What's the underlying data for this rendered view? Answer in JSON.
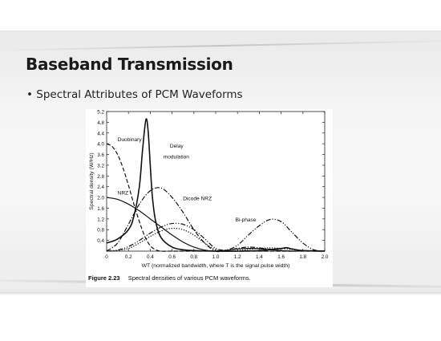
{
  "slide": {
    "title": "Baseband Transmission",
    "bullet": "• Spectral Attributes of PCM Waveforms"
  },
  "figure": {
    "number": "Figure 2.23",
    "caption": "Spectral densities of various PCM waveforms."
  },
  "chart_data": {
    "type": "line",
    "xlabel": "WT (normalized bandwidth, where T is the signal pulse width)",
    "ylabel": "Spectral density (W/Hz)",
    "xlim": [
      0,
      2.0
    ],
    "ylim": [
      0,
      5.2
    ],
    "xticks": [
      "0",
      "0.2",
      "0.4",
      "0.6",
      "0.8",
      "1.0",
      "1.2",
      "1.4",
      "1.6",
      "1.8",
      "2.0"
    ],
    "yticks": [
      "0.4",
      "0.8",
      "1.2",
      "1.6",
      "2.0",
      "2.4",
      "2.8",
      "3.2",
      "3.6",
      "4.0",
      "4.4",
      "4.8",
      "5.2"
    ],
    "grid": false,
    "series": [
      {
        "name": "Duobinary",
        "dash": "dashed",
        "x": [
          0,
          0.05,
          0.1,
          0.15,
          0.2,
          0.25,
          0.3,
          0.35,
          0.4,
          0.45,
          0.5,
          0.6,
          0.8,
          1.0,
          1.2,
          1.4,
          1.6,
          1.8,
          2.0
        ],
        "y": [
          4.0,
          3.9,
          3.6,
          3.1,
          2.45,
          1.75,
          1.1,
          0.55,
          0.2,
          0.05,
          0.0,
          0.0,
          0.0,
          0.0,
          0.0,
          0.0,
          0.0,
          0.0,
          0.0
        ]
      },
      {
        "name": "Delay modulation",
        "dash": "solid",
        "x": [
          0,
          0.1,
          0.2,
          0.25,
          0.3,
          0.33,
          0.36,
          0.38,
          0.4,
          0.42,
          0.45,
          0.5,
          0.6,
          0.7,
          0.8,
          1.0,
          1.2,
          1.4,
          1.6,
          1.65,
          1.7,
          1.8,
          2.0
        ],
        "y": [
          0.3,
          0.45,
          0.8,
          1.3,
          2.4,
          3.8,
          4.9,
          4.5,
          3.2,
          2.0,
          1.1,
          0.5,
          0.15,
          0.05,
          0.02,
          0.0,
          0.0,
          0.02,
          0.1,
          0.13,
          0.08,
          0.02,
          0.0
        ]
      },
      {
        "name": "NRZ",
        "dash": "solid",
        "x": [
          0,
          0.1,
          0.2,
          0.3,
          0.4,
          0.5,
          0.6,
          0.7,
          0.8,
          0.9,
          1.0,
          1.1,
          1.2,
          1.3,
          1.4,
          1.5,
          1.6,
          1.7,
          1.8,
          1.9,
          2.0
        ],
        "y": [
          2.0,
          1.93,
          1.75,
          1.5,
          1.2,
          0.9,
          0.6,
          0.34,
          0.15,
          0.04,
          0.0,
          0.03,
          0.08,
          0.1,
          0.09,
          0.05,
          0.02,
          0.0,
          0.01,
          0.02,
          0.0
        ]
      },
      {
        "name": "Dicode NRZ",
        "dash": "dashdot",
        "x": [
          0,
          0.1,
          0.2,
          0.3,
          0.4,
          0.5,
          0.6,
          0.7,
          0.8,
          0.9,
          1.0,
          1.1,
          1.2,
          1.3,
          1.4,
          1.5,
          1.6,
          1.7,
          1.8,
          1.9,
          2.0
        ],
        "y": [
          0.0,
          0.3,
          1.0,
          1.75,
          2.25,
          2.35,
          2.0,
          1.45,
          0.8,
          0.3,
          0.0,
          0.03,
          0.1,
          0.15,
          0.12,
          0.07,
          0.02,
          0.0,
          0.01,
          0.02,
          0.0
        ]
      },
      {
        "name": "Bi-phase",
        "dash": "dashdotdot",
        "x": [
          0,
          0.1,
          0.2,
          0.3,
          0.4,
          0.5,
          0.6,
          0.7,
          0.8,
          0.9,
          1.0,
          1.1,
          1.2,
          1.3,
          1.4,
          1.5,
          1.6,
          1.7,
          1.8,
          1.9,
          2.0
        ],
        "y": [
          0.0,
          0.04,
          0.17,
          0.4,
          0.67,
          0.9,
          1.03,
          1.0,
          0.8,
          0.46,
          0.1,
          0.05,
          0.22,
          0.6,
          0.95,
          1.18,
          1.1,
          0.7,
          0.3,
          0.05,
          0.0
        ]
      },
      {
        "name": "",
        "dash": "dotted",
        "x": [
          0,
          0.1,
          0.2,
          0.3,
          0.4,
          0.5,
          0.6,
          0.7,
          0.8,
          0.9,
          1.0,
          1.1,
          1.2,
          1.3,
          1.4,
          1.5,
          1.6,
          1.7,
          1.8,
          1.9,
          2.0
        ],
        "y": [
          0.0,
          0.02,
          0.1,
          0.3,
          0.55,
          0.75,
          0.85,
          0.8,
          0.6,
          0.3,
          0.05,
          0.0,
          0.02,
          0.06,
          0.1,
          0.12,
          0.1,
          0.06,
          0.02,
          0.0,
          0.0
        ]
      }
    ],
    "annotations": [
      {
        "text": "Duobinary",
        "x": 0.1,
        "y": 4.1
      },
      {
        "text": "Delay",
        "x": 0.58,
        "y": 3.85
      },
      {
        "text": "modulation",
        "x": 0.52,
        "y": 3.45
      },
      {
        "text": "NRZ",
        "x": 0.1,
        "y": 2.1
      },
      {
        "text": "Dicode NRZ",
        "x": 0.7,
        "y": 1.9
      },
      {
        "text": "Bi-phase",
        "x": 1.18,
        "y": 1.1
      }
    ]
  }
}
